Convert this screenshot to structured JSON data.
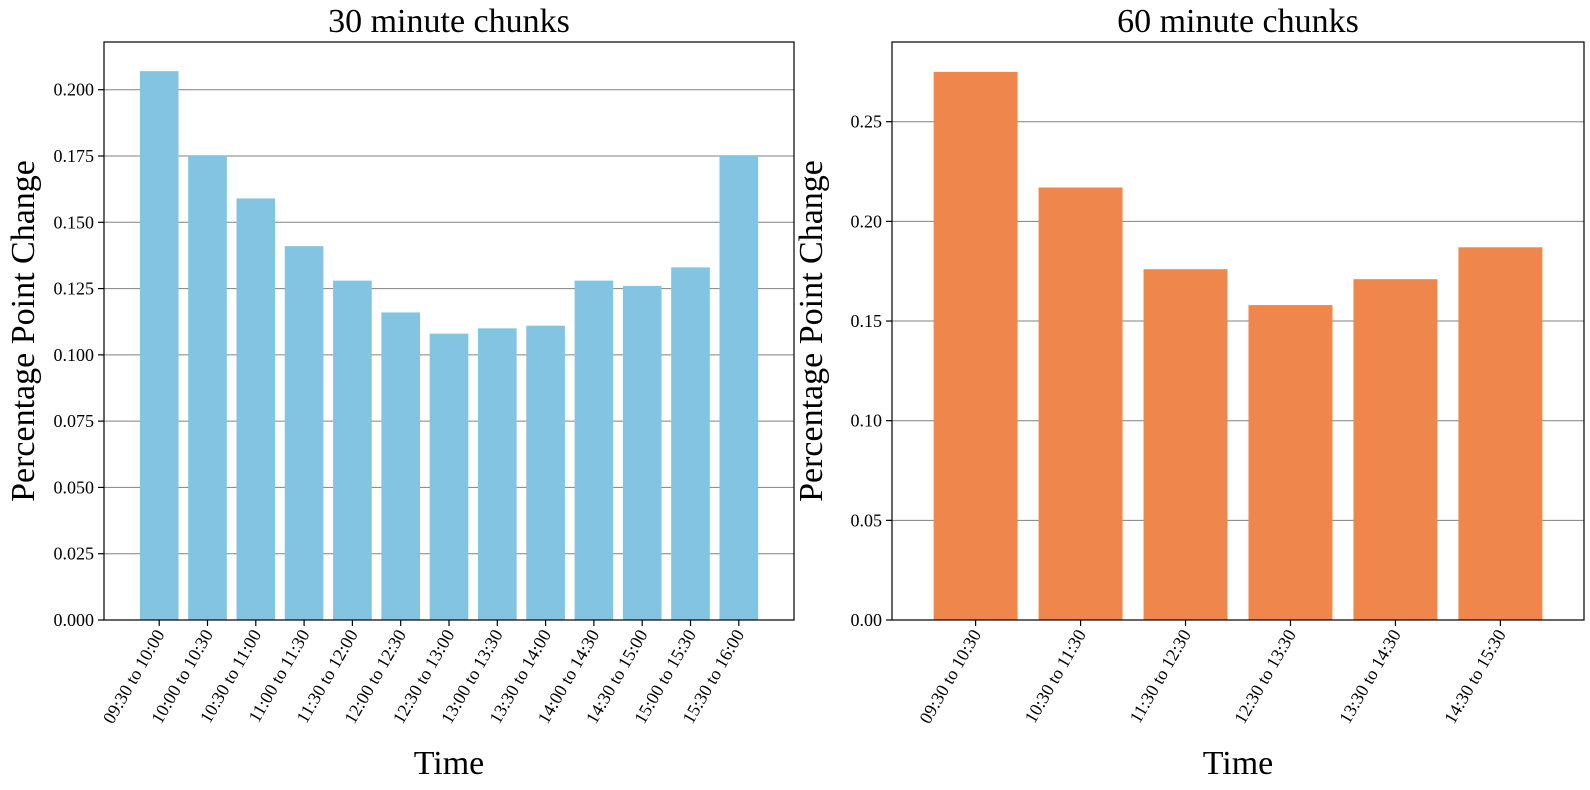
{
  "chart_data": [
    {
      "type": "bar",
      "title": "30 minute chunks",
      "xlabel": "Time",
      "ylabel": "Percentage Point Change",
      "categories": [
        "09:30 to 10:00",
        "10:00 to 10:30",
        "10:30 to 11:00",
        "11:00 to 11:30",
        "11:30 to 12:00",
        "12:00 to 12:30",
        "12:30 to 13:00",
        "13:00 to 13:30",
        "13:30 to 14:00",
        "14:00 to 14:30",
        "14:30 to 15:00",
        "15:00 to 15:30",
        "15:30 to 16:00"
      ],
      "values": [
        0.207,
        0.175,
        0.159,
        0.141,
        0.128,
        0.116,
        0.108,
        0.11,
        0.111,
        0.128,
        0.126,
        0.133,
        0.175
      ],
      "ylim": [
        0,
        0.218
      ],
      "yticks": [
        0.0,
        0.025,
        0.05,
        0.075,
        0.1,
        0.125,
        0.15,
        0.175,
        0.2
      ],
      "ytick_labels": [
        "0.000",
        "0.025",
        "0.050",
        "0.075",
        "0.100",
        "0.125",
        "0.150",
        "0.175",
        "0.200"
      ],
      "color": "#82c4e1",
      "grid": "y"
    },
    {
      "type": "bar",
      "title": "60 minute chunks",
      "xlabel": "Time",
      "ylabel": "Percentage Point Change",
      "categories": [
        "09:30 to 10:30",
        "10:30 to 11:30",
        "11:30 to 12:30",
        "12:30 to 13:30",
        "13:30 to 14:30",
        "14:30 to 15:30"
      ],
      "values": [
        0.275,
        0.217,
        0.176,
        0.158,
        0.171,
        0.187
      ],
      "ylim": [
        0,
        0.29
      ],
      "yticks": [
        0.0,
        0.05,
        0.1,
        0.15,
        0.2,
        0.25
      ],
      "ytick_labels": [
        "0.00",
        "0.05",
        "0.10",
        "0.15",
        "0.20",
        "0.25"
      ],
      "color": "#ef874c",
      "grid": "y"
    }
  ]
}
